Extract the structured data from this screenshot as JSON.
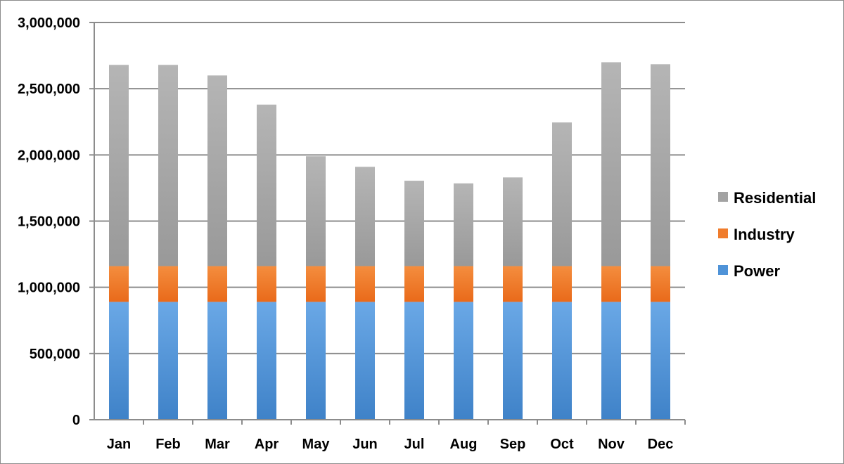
{
  "chart_data": {
    "type": "bar",
    "stacked": true,
    "title": "",
    "xlabel": "",
    "ylabel": "",
    "categories": [
      "Jan",
      "Feb",
      "Mar",
      "Apr",
      "May",
      "Jun",
      "Jul",
      "Aug",
      "Sep",
      "Oct",
      "Nov",
      "Dec"
    ],
    "series": [
      {
        "name": "Power",
        "color": "#4f93d8",
        "values": [
          890000,
          890000,
          890000,
          890000,
          890000,
          890000,
          890000,
          890000,
          890000,
          890000,
          890000,
          890000
        ]
      },
      {
        "name": "Industry",
        "color": "#f07c2c",
        "values": [
          270000,
          270000,
          270000,
          270000,
          270000,
          270000,
          270000,
          270000,
          270000,
          270000,
          270000,
          270000
        ]
      },
      {
        "name": "Residential",
        "color": "#a3a3a3",
        "values": [
          1520000,
          1520000,
          1440000,
          1220000,
          830000,
          750000,
          645000,
          625000,
          670000,
          1085000,
          1540000,
          1525000
        ]
      }
    ],
    "ylim": [
      0,
      3000000
    ],
    "yticks": [
      0,
      500000,
      1000000,
      1500000,
      2000000,
      2500000,
      3000000
    ],
    "ytick_labels": [
      "0",
      "500,000",
      "1,000,000",
      "1,500,000",
      "2,000,000",
      "2,500,000",
      "3,000,000"
    ],
    "grid": true,
    "legend_placement": "right",
    "legend_order": [
      "Residential",
      "Industry",
      "Power"
    ]
  }
}
